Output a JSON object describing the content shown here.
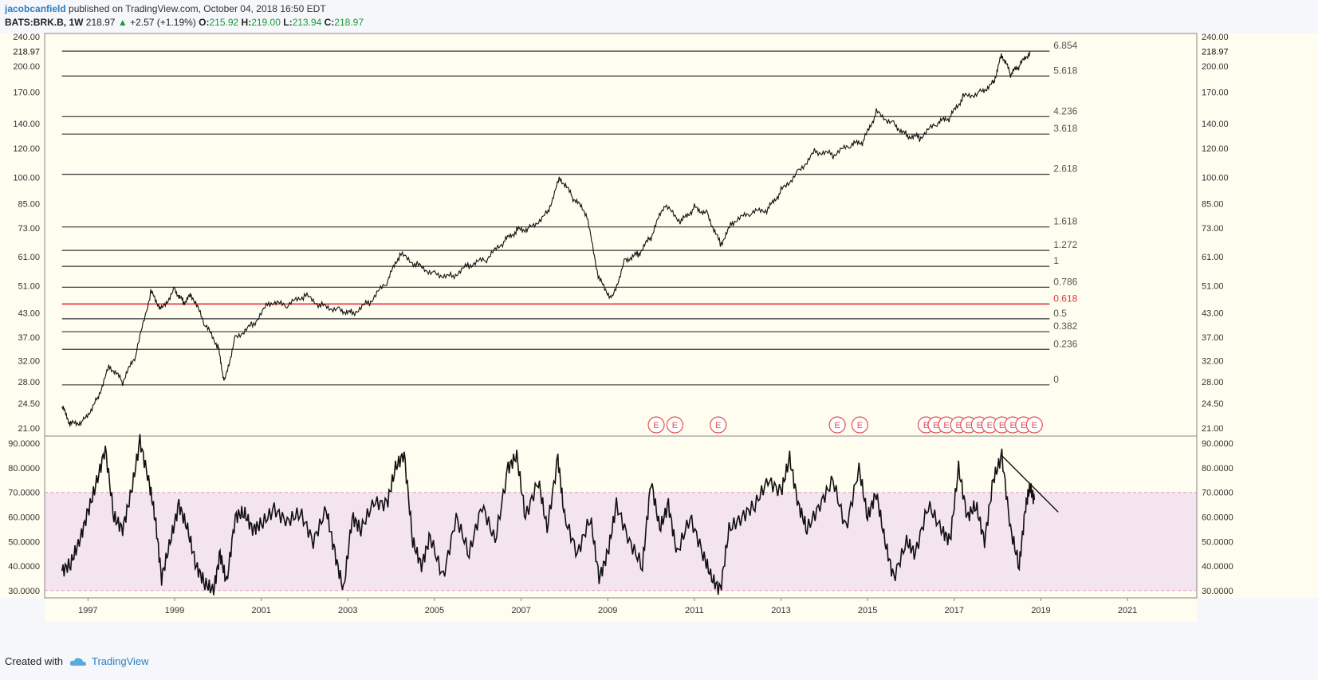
{
  "header": {
    "author": "jacobcanfield",
    "published": "published on TradingView.com, October 04, 2018 16:50 EDT",
    "symbol": "BATS:BRK.B, 1W",
    "last": "218.97",
    "change": "+2.57 (+1.19%)",
    "o_label": "O:",
    "o": "215.92",
    "h_label": "H:",
    "h": "219.00",
    "l_label": "L:",
    "l": "213.94",
    "c_label": "C:",
    "c": "218.97"
  },
  "footer": {
    "created_with": "Created with",
    "brand": "TradingView"
  },
  "colors": {
    "background": "#fffdf0",
    "rsi_band": "#f4e4ef",
    "fib_red": "#e8343c",
    "green": "#1a9a3a",
    "earnings": "#e05050",
    "volume_up": "#7fc7bd",
    "volume_down": "#f2a6a0"
  },
  "chart_data": [
    {
      "type": "line",
      "panel": "price",
      "scale": "log",
      "ylim": [
        20,
        245
      ],
      "xlim": [
        1996.0,
        2022.6
      ],
      "y_ticks": [
        "240.00",
        "200.00",
        "170.00",
        "140.00",
        "120.00",
        "100.00",
        "85.00",
        "73.00",
        "61.00",
        "51.00",
        "43.00",
        "37.00",
        "32.00",
        "28.00",
        "24.50",
        "21.00"
      ],
      "price_label": "218.97",
      "x_ticks": [
        "1997",
        "1999",
        "2001",
        "2003",
        "2005",
        "2007",
        "2009",
        "2011",
        "2013",
        "2015",
        "2017",
        "2019",
        "2021"
      ],
      "series": [
        {
          "x": [
            1996.4,
            1996.6,
            1996.9,
            1997.2,
            1997.5,
            1997.8,
            1998.1,
            1998.45,
            1998.7,
            1999.0,
            1999.2,
            1999.4,
            1999.7,
            2000.0,
            2000.15,
            2000.4,
            2000.8,
            2001.2,
            2001.6,
            2002.0,
            2002.4,
            2002.8,
            2003.1,
            2003.5,
            2003.9,
            2004.2,
            2004.6,
            2005.0,
            2005.4,
            2005.8,
            2006.2,
            2006.6,
            2006.9,
            2007.2,
            2007.6,
            2007.9,
            2008.2,
            2008.5,
            2008.8,
            2009.1,
            2009.4,
            2009.7,
            2010.0,
            2010.3,
            2010.7,
            2011.0,
            2011.3,
            2011.6,
            2011.9,
            2012.3,
            2012.7,
            2013.0,
            2013.4,
            2013.8,
            2014.2,
            2014.6,
            2014.9,
            2015.2,
            2015.6,
            2015.9,
            2016.2,
            2016.6,
            2016.9,
            2017.2,
            2017.6,
            2017.9,
            2018.1,
            2018.3,
            2018.5,
            2018.75
          ],
          "values": [
            24,
            21.5,
            22,
            25,
            31,
            28,
            33,
            49,
            44,
            50,
            46,
            48,
            40,
            35,
            28,
            37,
            40,
            46,
            45,
            48,
            45,
            44,
            43,
            46,
            52,
            62,
            58,
            55,
            54,
            58,
            60,
            67,
            72,
            73,
            80,
            100,
            88,
            80,
            53,
            47,
            60,
            62,
            69,
            84,
            76,
            83,
            80,
            66,
            76,
            80,
            82,
            92,
            104,
            118,
            115,
            122,
            125,
            150,
            140,
            130,
            128,
            140,
            145,
            165,
            170,
            180,
            215,
            190,
            200,
            219
          ]
        }
      ],
      "fib_levels": [
        {
          "label": "6.854",
          "value": 219.5
        },
        {
          "label": "5.618",
          "value": 188
        },
        {
          "label": "4.236",
          "value": 146
        },
        {
          "label": "3.618",
          "value": 131
        },
        {
          "label": "2.618",
          "value": 102
        },
        {
          "label": "1.618",
          "value": 73.5
        },
        {
          "label": "1.272",
          "value": 63.5
        },
        {
          "label": "1",
          "value": 57.5
        },
        {
          "label": "0.786",
          "value": 50.5
        },
        {
          "label": "0.618",
          "value": 45.5
        },
        {
          "label": "0.5",
          "value": 41.5
        },
        {
          "label": "0.382",
          "value": 38.3
        },
        {
          "label": "0.236",
          "value": 34.3
        },
        {
          "label": "0",
          "value": 27.5
        }
      ],
      "fib_xstart": 1996.4,
      "fib_xend": 2019.2,
      "earnings_label": "E",
      "earnings_x": [
        2010.12,
        2010.55,
        2011.55,
        2014.3,
        2014.82,
        2016.35,
        2016.58,
        2016.82,
        2017.1,
        2017.33,
        2017.58,
        2017.82,
        2018.1,
        2018.35,
        2018.6,
        2018.85
      ]
    },
    {
      "type": "line",
      "panel": "rsi",
      "ylim": [
        27,
        93
      ],
      "y_ticks": [
        "90.0000",
        "80.0000",
        "70.0000",
        "60.0000",
        "50.0000",
        "40.0000",
        "30.0000"
      ],
      "band": [
        30,
        70
      ],
      "series": [
        {
          "x": [
            1996.4,
            1996.6,
            1996.8,
            1997.0,
            1997.2,
            1997.4,
            1997.6,
            1997.8,
            1998.0,
            1998.2,
            1998.4,
            1998.55,
            1998.7,
            1998.9,
            1999.1,
            1999.3,
            1999.5,
            1999.7,
            1999.9,
            2000.05,
            2000.2,
            2000.4,
            2000.6,
            2000.8,
            2001.0,
            2001.3,
            2001.6,
            2001.9,
            2002.2,
            2002.5,
            2002.7,
            2002.9,
            2003.1,
            2003.3,
            2003.6,
            2003.9,
            2004.1,
            2004.3,
            2004.5,
            2004.7,
            2004.9,
            2005.2,
            2005.5,
            2005.8,
            2006.1,
            2006.4,
            2006.7,
            2006.9,
            2007.1,
            2007.4,
            2007.6,
            2007.85,
            2008.0,
            2008.3,
            2008.6,
            2008.8,
            2009.0,
            2009.2,
            2009.5,
            2009.8,
            2010.0,
            2010.2,
            2010.4,
            2010.6,
            2010.9,
            2011.2,
            2011.4,
            2011.6,
            2011.8,
            2012.1,
            2012.4,
            2012.7,
            2013.0,
            2013.2,
            2013.4,
            2013.6,
            2013.9,
            2014.2,
            2014.5,
            2014.8,
            2015.0,
            2015.2,
            2015.4,
            2015.6,
            2015.9,
            2016.1,
            2016.4,
            2016.7,
            2016.9,
            2017.1,
            2017.3,
            2017.5,
            2017.7,
            2017.9,
            2018.1,
            2018.3,
            2018.5,
            2018.65,
            2018.75,
            2018.85
          ],
          "values": [
            38,
            41,
            50,
            62,
            74,
            88,
            60,
            55,
            70,
            91,
            75,
            60,
            35,
            50,
            65,
            55,
            40,
            33,
            30,
            45,
            33,
            60,
            62,
            55,
            57,
            63,
            58,
            62,
            50,
            63,
            45,
            30,
            60,
            55,
            66,
            65,
            80,
            86,
            50,
            40,
            52,
            35,
            60,
            45,
            65,
            50,
            80,
            85,
            60,
            75,
            55,
            84,
            60,
            45,
            60,
            35,
            45,
            65,
            50,
            40,
            75,
            55,
            65,
            45,
            60,
            45,
            35,
            30,
            55,
            60,
            65,
            75,
            70,
            84,
            65,
            55,
            65,
            75,
            55,
            80,
            60,
            70,
            50,
            35,
            50,
            45,
            65,
            55,
            50,
            80,
            60,
            65,
            50,
            75,
            85,
            55,
            40,
            65,
            72,
            67
          ]
        }
      ],
      "trendline": [
        {
          "x": 2018.1,
          "y": 85
        },
        {
          "x": 2019.4,
          "y": 62
        }
      ]
    }
  ]
}
